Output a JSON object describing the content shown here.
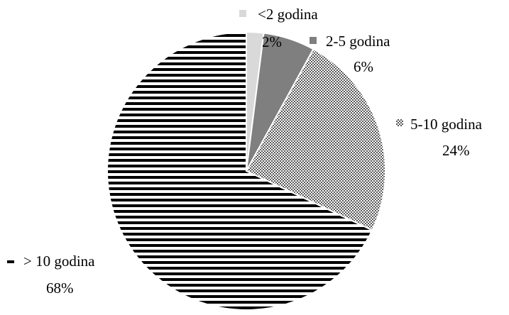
{
  "chart_data": {
    "type": "pie",
    "title": "",
    "slices": [
      {
        "name": "<2 godina",
        "value": 2,
        "value_label": "2%",
        "fill": "#d9d9d9",
        "pattern": "solid"
      },
      {
        "name": "2-5 godina",
        "value": 6,
        "value_label": "6%",
        "fill": "#7f7f7f",
        "pattern": "solid"
      },
      {
        "name": "5-10 godina",
        "value": 24,
        "value_label": "24%",
        "fill": "#595959",
        "pattern": "dots"
      },
      {
        "name": "> 10 godina",
        "value": 68,
        "value_label": "68%",
        "fill": "#000000",
        "pattern": "horizontal-lines"
      }
    ],
    "start_angle_deg": 0,
    "direction": "clockwise",
    "legend": "none",
    "data_labels": "category-and-percent"
  }
}
